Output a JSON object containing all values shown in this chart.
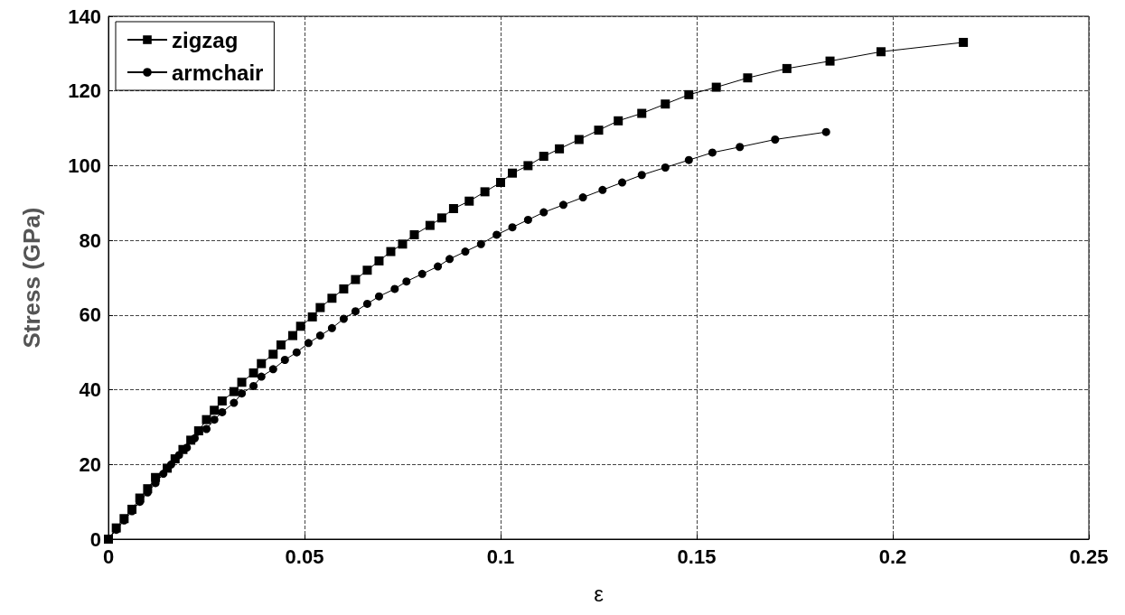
{
  "chart_data": {
    "type": "line",
    "xlabel": "ε",
    "ylabel": "Stress (GPa)",
    "xlim": [
      0,
      0.25
    ],
    "xticks": [
      0,
      0.05,
      0.1,
      0.15,
      0.2,
      0.25
    ],
    "ylim": [
      0,
      140
    ],
    "yticks": [
      0,
      20,
      40,
      60,
      80,
      100,
      120,
      140
    ],
    "grid": true,
    "legend": "top left",
    "line_style": "solid",
    "series": [
      {
        "name": "zigzag",
        "color": "#000000",
        "marker": "square",
        "x": [
          0,
          0.002,
          0.004,
          0.006,
          0.008,
          0.01,
          0.012,
          0.015,
          0.017,
          0.019,
          0.021,
          0.023,
          0.025,
          0.027,
          0.029,
          0.032,
          0.034,
          0.037,
          0.039,
          0.042,
          0.044,
          0.047,
          0.049,
          0.052,
          0.054,
          0.057,
          0.06,
          0.063,
          0.066,
          0.069,
          0.072,
          0.075,
          0.078,
          0.082,
          0.085,
          0.088,
          0.092,
          0.096,
          0.1,
          0.103,
          0.107,
          0.111,
          0.115,
          0.12,
          0.125,
          0.13,
          0.136,
          0.142,
          0.148,
          0.155,
          0.163,
          0.173,
          0.184,
          0.197,
          0.218
        ],
        "values": [
          0,
          3,
          5.5,
          8,
          11,
          13.5,
          16.5,
          19,
          21.5,
          24,
          26.5,
          29,
          32,
          34.5,
          37,
          39.5,
          42,
          44.5,
          47,
          49.5,
          52,
          54.5,
          57,
          59.5,
          62,
          64.5,
          67,
          69.5,
          72,
          74.5,
          77,
          79,
          81.5,
          84,
          86,
          88.5,
          90.5,
          93,
          95.5,
          98,
          100,
          102.5,
          104.5,
          107,
          109.5,
          112,
          114,
          116.5,
          119,
          121,
          123.5,
          126,
          128,
          130.5,
          133
        ]
      },
      {
        "name": "armchair",
        "color": "#000000",
        "marker": "circle",
        "x": [
          0,
          0.002,
          0.004,
          0.006,
          0.008,
          0.01,
          0.012,
          0.014,
          0.016,
          0.018,
          0.02,
          0.022,
          0.025,
          0.027,
          0.029,
          0.032,
          0.034,
          0.037,
          0.039,
          0.042,
          0.045,
          0.048,
          0.051,
          0.054,
          0.057,
          0.06,
          0.063,
          0.066,
          0.069,
          0.073,
          0.076,
          0.08,
          0.084,
          0.087,
          0.091,
          0.095,
          0.099,
          0.103,
          0.107,
          0.111,
          0.116,
          0.121,
          0.126,
          0.131,
          0.136,
          0.142,
          0.148,
          0.154,
          0.161,
          0.17,
          0.183
        ],
        "values": [
          0,
          2.5,
          5,
          7.5,
          10,
          12.5,
          15,
          17.5,
          20,
          22.5,
          24.5,
          27,
          29.5,
          32,
          34,
          36.5,
          39,
          41,
          43.5,
          45.5,
          48,
          50,
          52.5,
          54.5,
          56.5,
          59,
          61,
          63,
          65,
          67,
          69,
          71,
          73,
          75,
          77,
          79,
          81.5,
          83.5,
          85.5,
          87.5,
          89.5,
          91.5,
          93.5,
          95.5,
          97.5,
          99.5,
          101.5,
          103.5,
          105,
          107,
          109
        ]
      }
    ]
  }
}
